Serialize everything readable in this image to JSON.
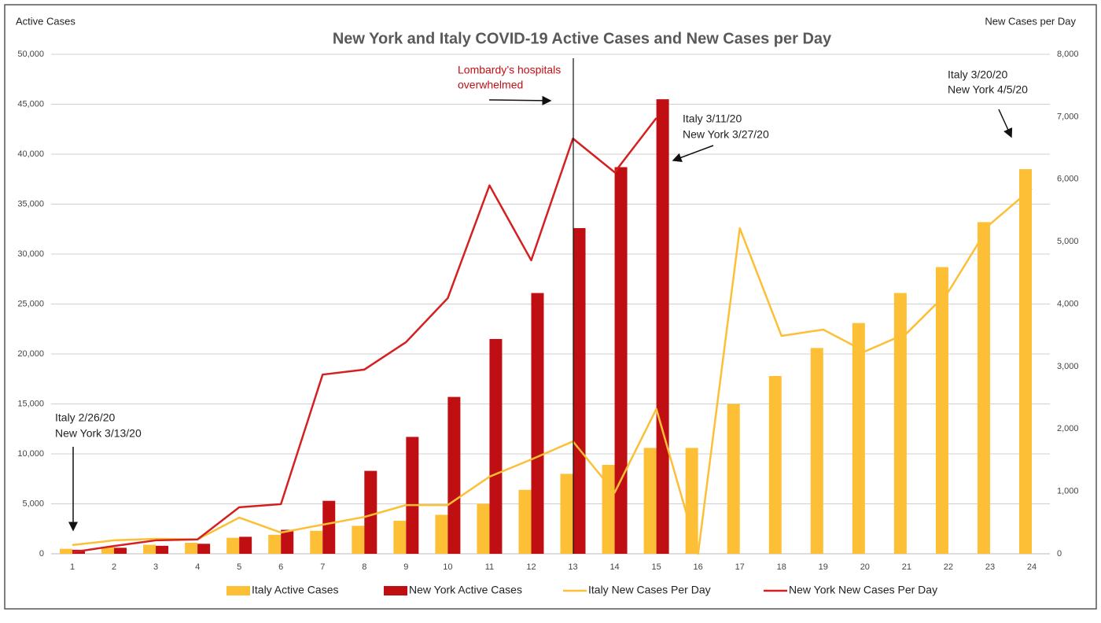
{
  "chart_data": {
    "type": "combo",
    "title": "New York and Italy COVID-19 Active Cases and New Cases per Day",
    "y_label": "Active Cases",
    "y2_label": "New Cases per Day",
    "categories": [
      "1",
      "2",
      "3",
      "4",
      "5",
      "6",
      "7",
      "8",
      "9",
      "10",
      "11",
      "12",
      "13",
      "14",
      "15",
      "16",
      "17",
      "18",
      "19",
      "20",
      "21",
      "22",
      "23",
      "24"
    ],
    "series": [
      {
        "name": "Italy Active Cases",
        "kind": "bar",
        "color": "#fcbf35",
        "values": [
          500,
          700,
          900,
          1100,
          1600,
          1900,
          2300,
          2800,
          3300,
          3900,
          5000,
          6400,
          8000,
          8900,
          10600,
          10600,
          15000,
          17800,
          20600,
          23100,
          26100,
          28700,
          33200,
          38500
        ]
      },
      {
        "name": "New York Active Cases",
        "kind": "bar",
        "color": "#c00f12",
        "values": [
          400,
          600,
          800,
          1000,
          1700,
          2400,
          5300,
          8300,
          11700,
          15700,
          21500,
          26100,
          32600,
          38700,
          45500,
          null,
          null,
          null,
          null,
          null,
          null,
          null,
          null,
          null
        ]
      },
      {
        "name": "Italy New Cases Per Day",
        "kind": "line",
        "axis": "y2",
        "color": "#fcbf35",
        "values": [
          140,
          215,
          240,
          230,
          580,
          340,
          466,
          590,
          780,
          780,
          1235,
          1510,
          1800,
          980,
          2320,
          0,
          5215,
          3490,
          3590,
          3240,
          3530,
          4195,
          5280,
          5850
        ]
      },
      {
        "name": "New York New Cases Per Day",
        "kind": "line",
        "axis": "y2",
        "color": "#d42020",
        "values": [
          25,
          125,
          215,
          230,
          745,
          795,
          2870,
          2950,
          3390,
          4095,
          5900,
          4700,
          6650,
          6110,
          6980,
          null,
          null,
          null,
          null,
          null,
          null,
          null,
          null,
          null
        ]
      }
    ],
    "ylim": [
      0,
      50000
    ],
    "yticks": [
      0,
      {
        "value": 5000,
        "label": "5,000"
      },
      {
        "value": 10000,
        "label": "10,000"
      },
      {
        "value": 15000,
        "label": "15,000"
      },
      {
        "value": 20000,
        "label": "20,000"
      },
      {
        "value": 25000,
        "label": "25,000"
      },
      {
        "value": 30000,
        "label": "30,000"
      },
      {
        "value": 35000,
        "label": "35,000"
      },
      {
        "value": 40000,
        "label": "40,000"
      },
      {
        "value": 45000,
        "label": "45,000"
      },
      {
        "value": 50000,
        "label": "50,000"
      }
    ],
    "y2lim": [
      0,
      8000
    ],
    "y2ticks": [
      0,
      {
        "value": 1000,
        "label": "1,000"
      },
      {
        "value": 2000,
        "label": "2,000"
      },
      {
        "value": 3000,
        "label": "3,000"
      },
      {
        "value": 4000,
        "label": "4,000"
      },
      {
        "value": 5000,
        "label": "5,000"
      },
      {
        "value": 6000,
        "label": "6,000"
      },
      {
        "value": 7000,
        "label": "7,000"
      },
      {
        "value": 8000,
        "label": "8,000"
      }
    ],
    "grid": true,
    "legend": "bottom",
    "annotations": [
      [
        "Italy 2/26/20",
        "New York 3/13/20"
      ],
      [
        "Lombardy’s hospitals",
        "overwhelmed"
      ],
      [
        "Italy 3/11/20",
        "New York 3/27/20"
      ],
      [
        "Italy 3/20/20",
        "New York 4/5/20"
      ]
    ]
  }
}
